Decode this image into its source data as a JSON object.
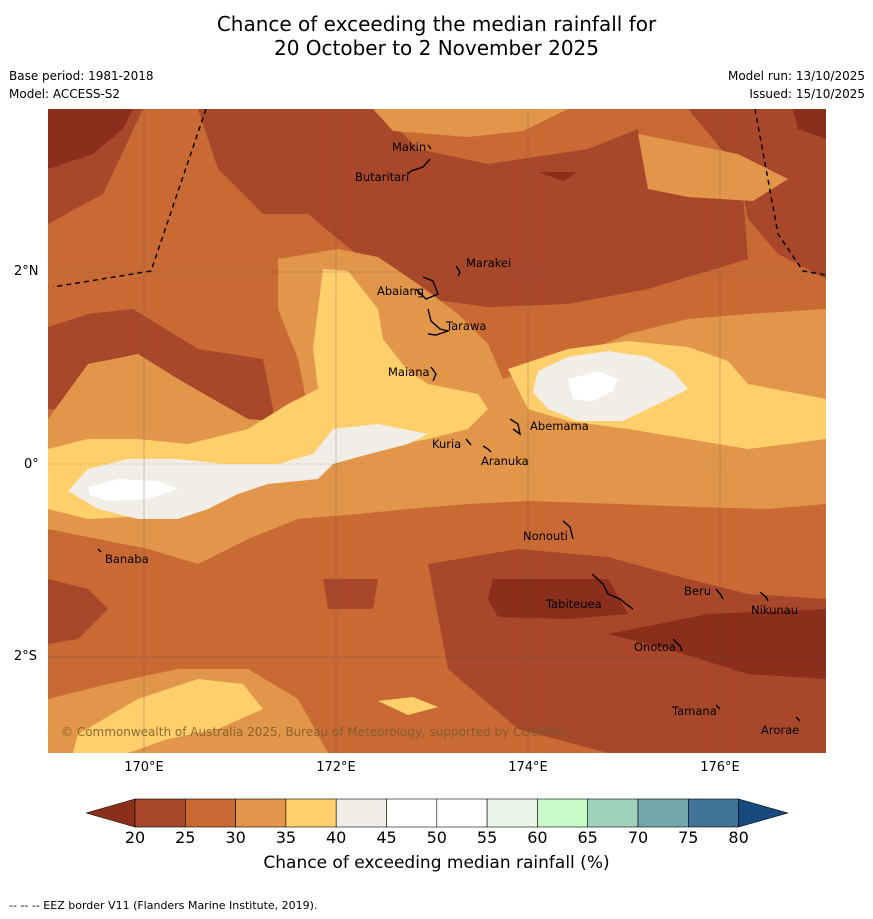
{
  "header": {
    "title_line1": "Chance of exceeding the median rainfall for",
    "title_line2": "20 October to 2 November 2025",
    "base_period": "Base period: 1981-2018",
    "model": "Model: ACCESS-S2",
    "model_run": "Model run: 13/10/2025",
    "issued": "Issued: 15/10/2025"
  },
  "axes": {
    "y_ticks": [
      "2°N",
      "0°",
      "2°S"
    ],
    "x_ticks": [
      "170°E",
      "172°E",
      "174°E",
      "176°E"
    ]
  },
  "map": {
    "places": [
      "Makin",
      "Butaritari",
      "Marakei",
      "Abaiang",
      "Tarawa",
      "Maiana",
      "Abemama",
      "Kuria",
      "Aranuka",
      "Nonouti",
      "Banaba",
      "Tabiteuea",
      "Beru",
      "Nikunau",
      "Onotoa",
      "Tamana",
      "Arorae"
    ],
    "credit": "© Commonwealth of Australia 2025, Bureau of Meteorology, supported by COSPPac"
  },
  "colorbar": {
    "ticks": [
      "20",
      "25",
      "30",
      "35",
      "40",
      "45",
      "50",
      "55",
      "60",
      "65",
      "70",
      "75",
      "80"
    ],
    "colors": [
      "#8b2e1c",
      "#a9472a",
      "#c96a35",
      "#e29649",
      "#fecf6b",
      "#f1ede7",
      "#ffffff",
      "#ffffff",
      "#eaf5ea",
      "#c8fac8",
      "#9fd1bb",
      "#72a8ab",
      "#3f7398",
      "#174a7e"
    ],
    "title": "Chance of exceeding median rainfall (%)"
  },
  "footer": "--  --  -- EEZ border V11 (Flanders Marine Institute, 2019)."
}
